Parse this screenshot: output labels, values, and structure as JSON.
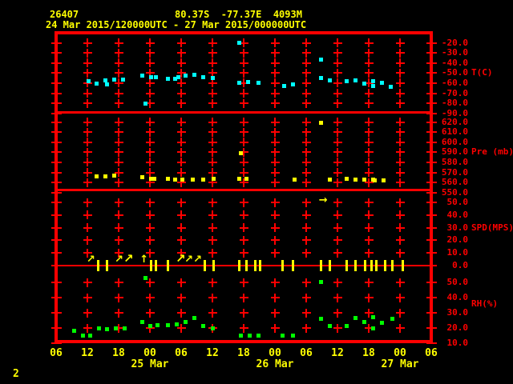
{
  "header": {
    "station_id": "26407",
    "location": "80.37S  -77.37E  4093M",
    "time_range": "24 Mar 2015/120000UTC - 27 Mar 2015/000000UTC"
  },
  "footer": {
    "page_number": "2"
  },
  "colors": {
    "background": "#000000",
    "axis": "#ff0000",
    "label_text": "#ffff00",
    "temperature": "#00ffff",
    "pressure": "#ffff00",
    "wind": "#ffff00",
    "humidity": "#00ff00"
  },
  "x_axis": {
    "start": "24 Mar 2015 06UTC",
    "end": "27 Mar 2015 06UTC",
    "tick_interval_hours": 6,
    "hour_labels": [
      "06",
      "12",
      "18",
      "00",
      "06",
      "12",
      "18",
      "00",
      "06",
      "12",
      "18",
      "00",
      "06"
    ],
    "date_labels": [
      {
        "label": "25 Mar",
        "hour": 18
      },
      {
        "label": "26 Mar",
        "hour": 42
      },
      {
        "label": "27 Mar",
        "hour": 66
      }
    ]
  },
  "panels": [
    {
      "name": "T(C)",
      "tick_labels": [
        "-20.0",
        "-30.0",
        "-40.0",
        "-50.0",
        "-60.0",
        "-70.0",
        "-80.0",
        "-90.0"
      ]
    },
    {
      "name": "Pre (mb)",
      "tick_labels": [
        "620.0",
        "610.0",
        "600.0",
        "590.0",
        "580.0",
        "570.0",
        "560.0",
        "550.0"
      ]
    },
    {
      "name": "SPD(MPS)",
      "tick_labels": [
        "50.0",
        "40.0",
        "30.0",
        "20.0",
        "10.0",
        "0.0"
      ]
    },
    {
      "name": "RH(%)",
      "tick_labels": [
        "50.0",
        "40.0",
        "30.0",
        "20.0",
        "10.0"
      ]
    }
  ],
  "chart_data": [
    {
      "type": "scatter",
      "series_name": "T(C)",
      "marker": "square",
      "color": "#00ffff",
      "x_unit": "hours since 24 Mar 2015 06UTC",
      "y_unit": "deg C",
      "ylim": [
        -90,
        -20
      ],
      "grid": true,
      "points": [
        [
          6.2,
          -58
        ],
        [
          7.8,
          -60.5
        ],
        [
          9.5,
          -57
        ],
        [
          9.8,
          -61.5
        ],
        [
          11.2,
          -56.5
        ],
        [
          12.9,
          -56.5
        ],
        [
          16.5,
          -52.5
        ],
        [
          17.1,
          -80
        ],
        [
          18.2,
          -54
        ],
        [
          19.1,
          -54
        ],
        [
          21.4,
          -55.5
        ],
        [
          22.8,
          -55.5
        ],
        [
          23.4,
          -54
        ],
        [
          24.9,
          -52.5
        ],
        [
          26.5,
          -51.5
        ],
        [
          28.3,
          -54
        ],
        [
          30,
          -55
        ],
        [
          35.2,
          -59.5
        ],
        [
          35.2,
          -20
        ],
        [
          36.8,
          -59
        ],
        [
          38.8,
          -60
        ],
        [
          43.7,
          -63
        ],
        [
          45.4,
          -61.5
        ],
        [
          50.9,
          -36.5
        ],
        [
          50.9,
          -55
        ],
        [
          52.5,
          -57
        ],
        [
          55.8,
          -58
        ],
        [
          57.5,
          -57
        ],
        [
          59.2,
          -60.5
        ],
        [
          60.8,
          -58
        ],
        [
          60.9,
          -63
        ],
        [
          62.5,
          -59.5
        ],
        [
          64.3,
          -63.5
        ]
      ]
    },
    {
      "type": "scatter",
      "series_name": "Pre (mb)",
      "marker": "square",
      "color": "#ffff00",
      "x_unit": "hours since 24 Mar 2015 06UTC",
      "y_unit": "mb",
      "ylim": [
        550,
        620
      ],
      "grid": true,
      "points": [
        [
          7.8,
          566
        ],
        [
          9.5,
          566
        ],
        [
          11.2,
          566.5
        ],
        [
          16.5,
          565
        ],
        [
          18.2,
          564
        ],
        [
          18.9,
          564
        ],
        [
          21.4,
          564
        ],
        [
          22.9,
          563
        ],
        [
          24.3,
          563
        ],
        [
          26.2,
          563
        ],
        [
          28.2,
          563
        ],
        [
          30.3,
          564
        ],
        [
          35.2,
          563.5
        ],
        [
          35.5,
          589
        ],
        [
          36.6,
          563.5
        ],
        [
          45.7,
          563
        ],
        [
          50.8,
          619
        ],
        [
          52.5,
          563
        ],
        [
          55.8,
          564
        ],
        [
          57.5,
          563
        ],
        [
          59.2,
          562.5
        ],
        [
          60.8,
          563
        ],
        [
          61.1,
          562
        ],
        [
          62.8,
          562
        ]
      ]
    },
    {
      "type": "scatter",
      "series_name": "SPD(MPS)",
      "color": "#ffff00",
      "x_unit": "hours since 24 Mar 2015 06UTC",
      "y_unit": "m/s",
      "ylim": [
        0,
        50
      ],
      "grid": true,
      "points": [
        [
          51.5,
          52
        ]
      ],
      "point_marker": "arrow-right",
      "wind_barbs": {
        "zero_line_value": 0,
        "ticks": [
          8,
          9.7,
          18.3,
          19.2,
          21.5,
          28.5,
          30.2,
          35.2,
          36.5,
          38.2,
          39.2,
          43.5,
          45.5,
          50.8,
          52.5,
          55.7,
          57.4,
          59.3,
          60.6,
          61.5,
          63.1,
          64.6,
          66.6
        ],
        "arrows": [
          [
            6.6,
            "ne"
          ],
          [
            12,
            "ne"
          ],
          [
            13.7,
            "ne-bold"
          ],
          [
            16.8,
            "n"
          ],
          [
            23.7,
            "ne-bold"
          ],
          [
            25.4,
            "ne"
          ],
          [
            27.1,
            "ne"
          ]
        ]
      }
    },
    {
      "type": "scatter",
      "series_name": "RH(%)",
      "marker": "square",
      "color": "#00ff00",
      "x_unit": "hours since 24 Mar 2015 06UTC",
      "y_unit": "%",
      "ylim": [
        10,
        50
      ],
      "grid": true,
      "points": [
        [
          3.4,
          18
        ],
        [
          5.1,
          15
        ],
        [
          6.6,
          15
        ],
        [
          8.2,
          19.5
        ],
        [
          9.8,
          19
        ],
        [
          11.4,
          19.5
        ],
        [
          13.1,
          19.5
        ],
        [
          16.5,
          24
        ],
        [
          17.2,
          53
        ],
        [
          18,
          21.5
        ],
        [
          19.4,
          22
        ],
        [
          21.4,
          22
        ],
        [
          23.2,
          22.5
        ],
        [
          24.9,
          24
        ],
        [
          26.5,
          26.5
        ],
        [
          28.2,
          21.5
        ],
        [
          30,
          20
        ],
        [
          35.4,
          15
        ],
        [
          37.1,
          15
        ],
        [
          38.8,
          15
        ],
        [
          43.5,
          15
        ],
        [
          45.4,
          15
        ],
        [
          50.8,
          50.5
        ],
        [
          50.8,
          26
        ],
        [
          52.5,
          21.5
        ],
        [
          55.8,
          21.5
        ],
        [
          57.4,
          26.5
        ],
        [
          59.1,
          24
        ],
        [
          60.9,
          27
        ],
        [
          60.9,
          20
        ],
        [
          62.6,
          23.5
        ],
        [
          64.5,
          26
        ]
      ]
    }
  ]
}
